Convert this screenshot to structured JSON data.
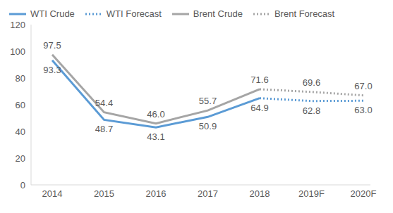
{
  "chart_data": {
    "type": "line",
    "categories": [
      "2014",
      "2015",
      "2016",
      "2017",
      "2018",
      "2019F",
      "2020F"
    ],
    "series": [
      {
        "name": "WTI Crude",
        "color": "#5b9bd5",
        "line_style": "solid",
        "values": [
          93.3,
          48.7,
          43.1,
          50.9,
          64.9,
          null,
          null
        ],
        "value_labels": [
          "93.3",
          "48.7",
          "43.1",
          "50.9",
          "64.9",
          null,
          null
        ]
      },
      {
        "name": "WTI Forecast",
        "color": "#5b9bd5",
        "line_style": "dotted",
        "values": [
          null,
          null,
          null,
          null,
          64.9,
          62.8,
          63.0
        ],
        "value_labels": [
          null,
          null,
          null,
          null,
          "64.9",
          "62.8",
          "63.0"
        ]
      },
      {
        "name": "Brent Crude",
        "color": "#a5a5a5",
        "line_style": "solid",
        "values": [
          97.5,
          54.4,
          46.0,
          55.7,
          71.6,
          null,
          null
        ],
        "value_labels": [
          "97.5",
          "54.4",
          "46.0",
          "55.7",
          "71.6",
          null,
          null
        ]
      },
      {
        "name": "Brent Forecast",
        "color": "#a5a5a5",
        "line_style": "dotted",
        "values": [
          null,
          null,
          null,
          null,
          71.6,
          69.6,
          67.0
        ],
        "value_labels": [
          null,
          null,
          null,
          null,
          "71.6",
          "69.6",
          "67.0"
        ]
      }
    ],
    "ylim": [
      0,
      120
    ],
    "yticks": [
      0,
      20,
      40,
      60,
      80,
      100,
      120
    ],
    "grid": false,
    "legend": "top-left",
    "data_labels": true
  }
}
